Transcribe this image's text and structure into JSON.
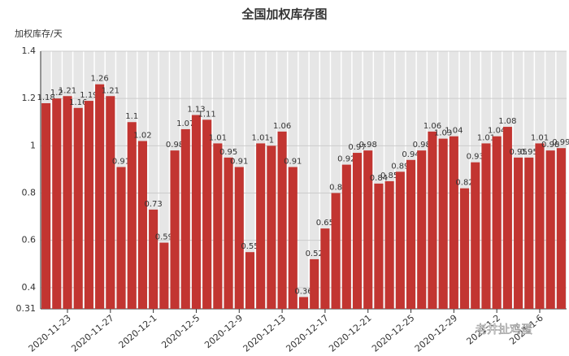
{
  "chart_data": {
    "type": "bar",
    "title": "全国加权库存图",
    "y_label": "加权库存/天",
    "categories": [
      null,
      null,
      "2020-11-23",
      null,
      null,
      null,
      "2020-11-27",
      null,
      null,
      null,
      "2020-12-1",
      null,
      null,
      null,
      "2020-12-5",
      null,
      null,
      null,
      "2020-12-9",
      null,
      null,
      null,
      "2020-12-13",
      null,
      null,
      null,
      "2020-12-17",
      null,
      null,
      null,
      "2020-12-21",
      null,
      null,
      null,
      "2020-12-25",
      null,
      null,
      null,
      "2020-12-29",
      null,
      null,
      null,
      "2021-1-2",
      null,
      null,
      null,
      "2021-1-6",
      null,
      null
    ],
    "values": [
      1.18,
      1.2,
      1.21,
      1.16,
      1.19,
      1.26,
      1.21,
      0.91,
      1.1,
      1.02,
      0.73,
      0.59,
      0.98,
      1.07,
      1.13,
      1.11,
      1.01,
      0.95,
      0.91,
      0.55,
      1.01,
      1,
      1.06,
      0.91,
      0.36,
      0.52,
      0.65,
      0.8,
      0.92,
      0.97,
      0.98,
      0.84,
      0.85,
      0.89,
      0.94,
      0.98,
      1.06,
      1.03,
      1.04,
      0.82,
      0.93,
      1.01,
      1.04,
      1.08,
      0.95,
      0.95,
      1.01,
      0.98,
      0.99
    ],
    "color": "#c23531",
    "ylim": [
      0.31,
      1.4
    ],
    "yticks": [
      0.31,
      0.4,
      0.6,
      0.8,
      1,
      1.2,
      1.4
    ],
    "grid": true,
    "watermark": "老井扯鸡蛋"
  }
}
